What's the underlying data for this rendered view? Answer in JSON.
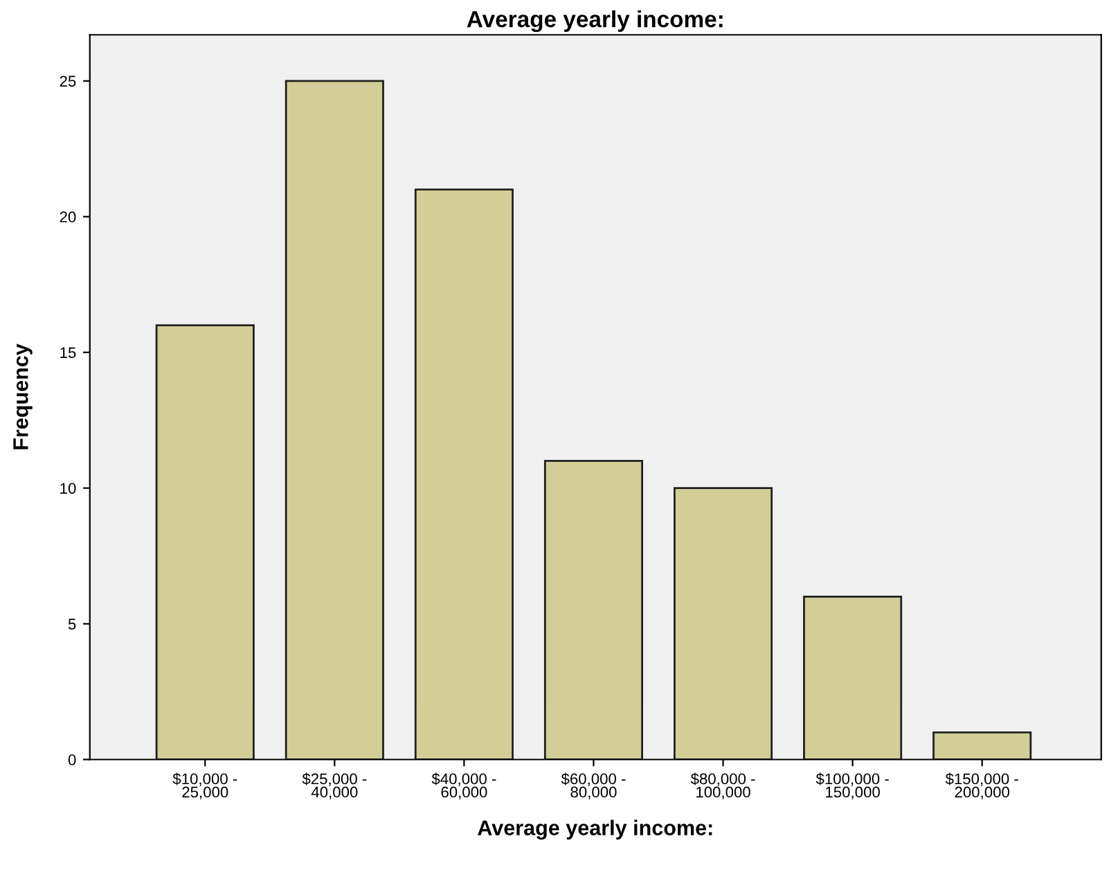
{
  "chart_data": {
    "type": "bar",
    "title": "Average yearly income:",
    "xlabel": "Average yearly income:",
    "ylabel": "Frequency",
    "categories": [
      "$10,000 -\n25,000",
      "$25,000 -\n40,000",
      "$40,000 -\n60,000",
      "$60,000 -\n80,000",
      "$80,000 -\n100,000",
      "$100,000 -\n150,000",
      "$150,000 -\n200,000"
    ],
    "values": [
      16,
      25,
      21,
      11,
      10,
      6,
      1
    ],
    "color": "#d3ce97",
    "ylim": [
      0,
      26.7
    ],
    "yticks": [
      0,
      5,
      10,
      15,
      20,
      25
    ],
    "grid": false,
    "legend": false
  }
}
